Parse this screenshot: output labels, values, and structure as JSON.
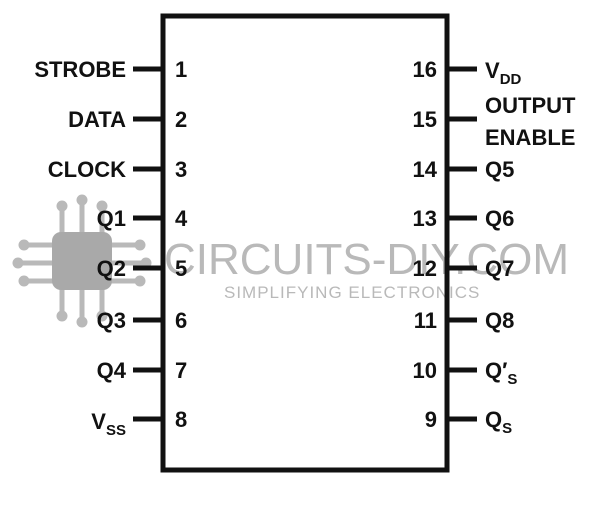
{
  "colors": {
    "ink": "#111111",
    "watermark": "#b9b9b9",
    "watermark_chip": "#a9a9a9",
    "background": "#ffffff"
  },
  "icons": {
    "watermark_logo": "chip-icon"
  },
  "pins": {
    "p1": {
      "number": "1",
      "label": "STROBE"
    },
    "p2": {
      "number": "2",
      "label": "DATA"
    },
    "p3": {
      "number": "3",
      "label": "CLOCK"
    },
    "p4": {
      "number": "4",
      "label": "Q1"
    },
    "p5": {
      "number": "5",
      "label": "Q2"
    },
    "p6": {
      "number": "6",
      "label": "Q3"
    },
    "p7": {
      "number": "7",
      "label": "Q4"
    },
    "p8": {
      "number": "8",
      "label_main": "V",
      "label_sub": "SS"
    },
    "p9": {
      "number": "9",
      "label_main": "Q",
      "label_sub": "S"
    },
    "p10": {
      "number": "10",
      "label_main": "Q′",
      "label_sub": "S"
    },
    "p11": {
      "number": "11",
      "label": "Q8"
    },
    "p12": {
      "number": "12",
      "label": "Q7"
    },
    "p13": {
      "number": "13",
      "label": "Q6"
    },
    "p14": {
      "number": "14",
      "label": "Q5"
    },
    "p15": {
      "number": "15",
      "label_line1": "OUTPUT",
      "label_line2": "ENABLE"
    },
    "p16": {
      "number": "16",
      "label_main": "V",
      "label_sub": "DD"
    }
  },
  "watermark": {
    "title": "CIRCUITS-DIY.COM",
    "subtitle": "SIMPLIFYING ELECTRONICS"
  }
}
